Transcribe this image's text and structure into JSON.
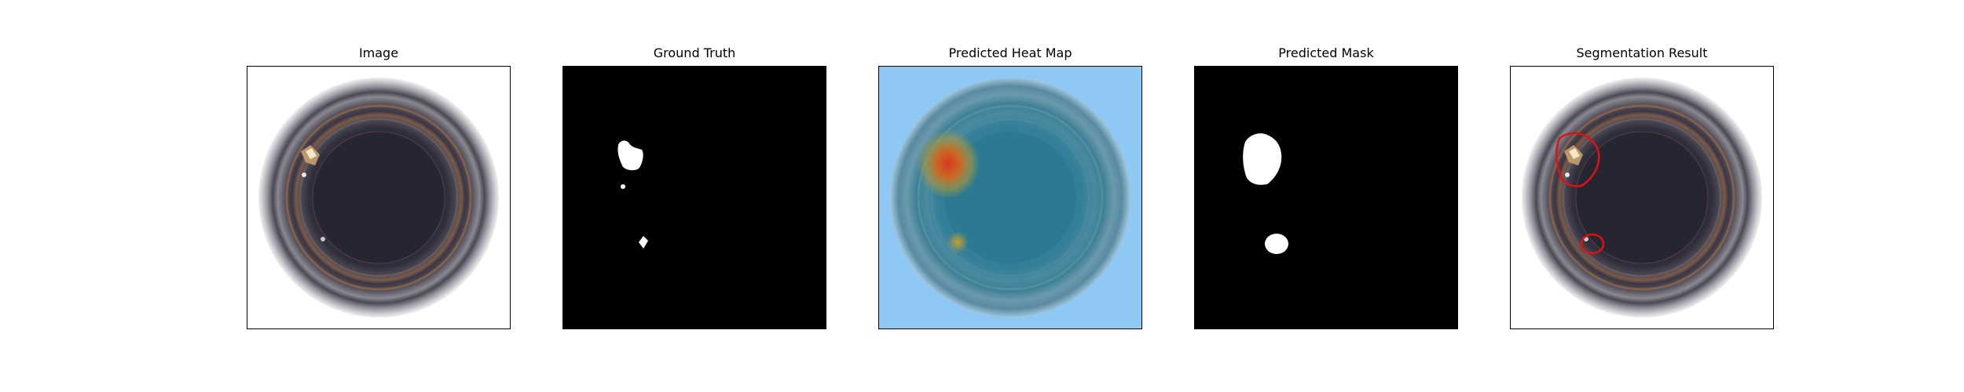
{
  "panels": [
    {
      "title": "Image"
    },
    {
      "title": "Ground Truth"
    },
    {
      "title": "Predicted Heat Map"
    },
    {
      "title": "Predicted Mask"
    },
    {
      "title": "Segmentation Result"
    }
  ],
  "colors": {
    "background": "#ffffff",
    "mask_background": "#000000",
    "mask_foreground": "#ffffff",
    "heatmap_low": "#8fc8f5",
    "heatmap_high": "#d63a1e",
    "contour": "#e01010"
  }
}
